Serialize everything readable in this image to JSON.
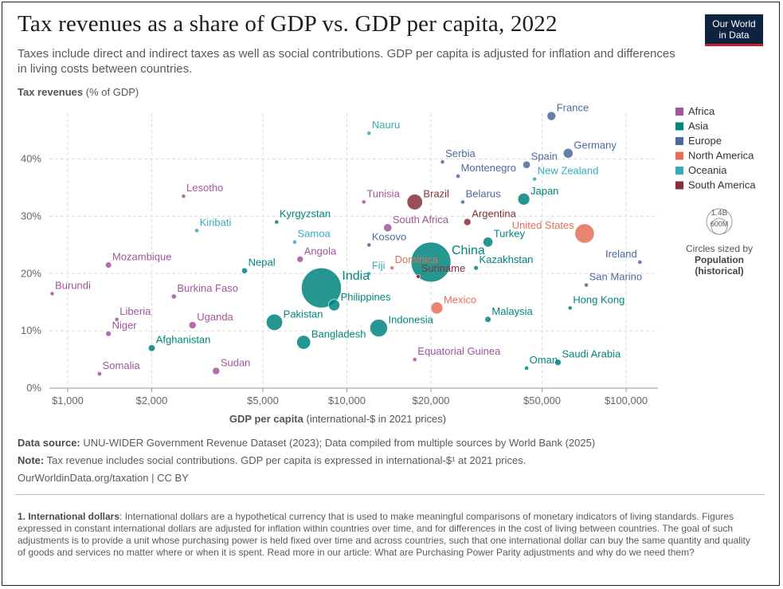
{
  "title": "Tax revenues as a share of GDP vs. GDP per capita, 2022",
  "subtitle": "Taxes include direct and indirect taxes as well as social contributions. GDP per capita is adjusted for inflation and differences in living costs between countries.",
  "logo": {
    "line1": "Our World",
    "line2": "in Data"
  },
  "footer": {
    "source_label": "Data source:",
    "source_text": "UNU-WIDER Government Revenue Dataset (2023); Data compiled from multiple sources by World Bank (2025)",
    "note_label": "Note:",
    "note_text": "Tax revenue includes social contributions. GDP per capita is expressed in international-$¹ at 2021 prices.",
    "url_text": "OurWorldinData.org/taxation | CC BY"
  },
  "footnote": {
    "label": "1. International dollars",
    "text": ": International dollars are a hypothetical currency that is used to make meaningful comparisons of monetary indicators of living standards. Figures expressed in constant international dollars are adjusted for inflation within countries over time, and for differences in the cost of living between countries. The goal of such adjustments is to provide a unit whose purchasing power is held fixed over time and across countries, such that one international dollar can buy the same quantity and quality of goods and services no matter where or when it is spent. Read more in our article: What are Purchasing Power Parity adjustments and why do we need them?"
  },
  "size_legend": {
    "big": "1.4B",
    "small": "600M",
    "caption": "Circles sized by",
    "caption_bold1": "Population",
    "caption_bold2": "(historical)"
  },
  "colors": {
    "Africa": "#a2559c",
    "Asia": "#00847e",
    "Europe": "#4c6a9c",
    "North America": "#e56e5a",
    "Oceania": "#38aaba",
    "South America": "#883039"
  },
  "chart_data": {
    "type": "scatter",
    "xscale": "log",
    "xlim": [
      860,
      130000
    ],
    "ylim": [
      0,
      48
    ],
    "grid": true,
    "legend_position": "right",
    "y_label_main": "Tax revenues",
    "y_label_unit": "(% of GDP)",
    "x_label_main": "GDP per capita",
    "x_label_unit": "(international-$ in 2021 prices)",
    "x_ticks": [
      {
        "v": 1000,
        "label": "$1,000"
      },
      {
        "v": 2000,
        "label": "$2,000"
      },
      {
        "v": 5000,
        "label": "$5,000"
      },
      {
        "v": 10000,
        "label": "$10,000"
      },
      {
        "v": 20000,
        "label": "$20,000"
      },
      {
        "v": 50000,
        "label": "$50,000"
      },
      {
        "v": 100000,
        "label": "$100,000"
      }
    ],
    "y_ticks": [
      {
        "v": 0,
        "label": "0%"
      },
      {
        "v": 10,
        "label": "10%"
      },
      {
        "v": 20,
        "label": "20%"
      },
      {
        "v": 30,
        "label": "30%"
      },
      {
        "v": 40,
        "label": "40%"
      }
    ],
    "legend": [
      "Africa",
      "Asia",
      "Europe",
      "North America",
      "Oceania",
      "South America"
    ],
    "points": [
      {
        "label": "France",
        "region": "Europe",
        "x": 54000,
        "y": 47.5,
        "pop": 68
      },
      {
        "label": "Germany",
        "region": "Europe",
        "x": 62000,
        "y": 41,
        "pop": 84
      },
      {
        "label": "Spain",
        "region": "Europe",
        "x": 44000,
        "y": 39,
        "pop": 48
      },
      {
        "label": "Serbia",
        "region": "Europe",
        "x": 22000,
        "y": 39.5,
        "pop": 7
      },
      {
        "label": "Montenegro",
        "region": "Europe",
        "x": 25000,
        "y": 37,
        "pop": 1
      },
      {
        "label": "New Zealand",
        "region": "Oceania",
        "x": 47000,
        "y": 36.5,
        "pop": 5
      },
      {
        "label": "Nauru",
        "region": "Oceania",
        "x": 12000,
        "y": 44.5,
        "pop": 0.2
      },
      {
        "label": "Lesotho",
        "region": "Africa",
        "x": 2600,
        "y": 33.5,
        "pop": 2.3
      },
      {
        "label": "Tunisia",
        "region": "Africa",
        "x": 11500,
        "y": 32.5,
        "pop": 12
      },
      {
        "label": "Brazil",
        "region": "South America",
        "x": 17500,
        "y": 32.5,
        "pop": 215
      },
      {
        "label": "Belarus",
        "region": "Europe",
        "x": 26000,
        "y": 32.5,
        "pop": 9
      },
      {
        "label": "Japan",
        "region": "Asia",
        "x": 43000,
        "y": 33,
        "pop": 125
      },
      {
        "label": "Kyrgyzstan",
        "region": "Asia",
        "x": 5600,
        "y": 29,
        "pop": 7
      },
      {
        "label": "Kiribati",
        "region": "Oceania",
        "x": 2900,
        "y": 27.5,
        "pop": 0.1
      },
      {
        "label": "Argentina",
        "region": "South America",
        "x": 27000,
        "y": 29,
        "pop": 46
      },
      {
        "label": "South Africa",
        "region": "Africa",
        "x": 14000,
        "y": 28,
        "pop": 60
      },
      {
        "label": "United States",
        "region": "North America",
        "x": 71000,
        "y": 27,
        "pop": 335
      },
      {
        "label": "Samoa",
        "region": "Oceania",
        "x": 6500,
        "y": 25.5,
        "pop": 0.2
      },
      {
        "label": "Kosovo",
        "region": "Europe",
        "x": 12000,
        "y": 25,
        "pop": 2
      },
      {
        "label": "China",
        "region": "Asia",
        "x": 20000,
        "y": 22,
        "pop": 1410
      },
      {
        "label": "Turkey",
        "region": "Asia",
        "x": 32000,
        "y": 25.5,
        "pop": 85
      },
      {
        "label": "Mozambique",
        "region": "Africa",
        "x": 1400,
        "y": 21.5,
        "pop": 33
      },
      {
        "label": "Angola",
        "region": "Africa",
        "x": 6800,
        "y": 22.5,
        "pop": 36
      },
      {
        "label": "Nepal",
        "region": "Asia",
        "x": 4300,
        "y": 20.5,
        "pop": 30
      },
      {
        "label": "Dominica",
        "region": "North America",
        "x": 14500,
        "y": 21,
        "pop": 0.1
      },
      {
        "label": "Kazakhstan",
        "region": "Asia",
        "x": 29000,
        "y": 21,
        "pop": 19
      },
      {
        "label": "Ireland",
        "region": "Europe",
        "x": 112000,
        "y": 22,
        "pop": 5
      },
      {
        "label": "India",
        "region": "Asia",
        "x": 8100,
        "y": 17.5,
        "pop": 1420
      },
      {
        "label": "Fiji",
        "region": "Oceania",
        "x": 12000,
        "y": 20,
        "pop": 0.9
      },
      {
        "label": "Suriname",
        "region": "South America",
        "x": 18000,
        "y": 19.5,
        "pop": 0.6
      },
      {
        "label": "San Marino",
        "region": "Europe",
        "x": 72000,
        "y": 18,
        "pop": 0.03
      },
      {
        "label": "Burundi",
        "region": "Africa",
        "x": 880,
        "y": 16.5,
        "pop": 13
      },
      {
        "label": "Burkina Faso",
        "region": "Africa",
        "x": 2400,
        "y": 16,
        "pop": 22
      },
      {
        "label": "Philippines",
        "region": "Asia",
        "x": 9000,
        "y": 14.5,
        "pop": 115
      },
      {
        "label": "Mexico",
        "region": "North America",
        "x": 21000,
        "y": 14,
        "pop": 127
      },
      {
        "label": "Hong Kong",
        "region": "Asia",
        "x": 63000,
        "y": 14,
        "pop": 7.3
      },
      {
        "label": "Liberia",
        "region": "Africa",
        "x": 1500,
        "y": 12,
        "pop": 5.3
      },
      {
        "label": "Pakistan",
        "region": "Asia",
        "x": 5500,
        "y": 11.5,
        "pop": 235
      },
      {
        "label": "Indonesia",
        "region": "Asia",
        "x": 13000,
        "y": 10.5,
        "pop": 275
      },
      {
        "label": "Malaysia",
        "region": "Asia",
        "x": 32000,
        "y": 12,
        "pop": 33
      },
      {
        "label": "Uganda",
        "region": "Africa",
        "x": 2800,
        "y": 11,
        "pop": 47
      },
      {
        "label": "Niger",
        "region": "Africa",
        "x": 1400,
        "y": 9.5,
        "pop": 26
      },
      {
        "label": "Bangladesh",
        "region": "Asia",
        "x": 7000,
        "y": 8,
        "pop": 170
      },
      {
        "label": "Afghanistan",
        "region": "Asia",
        "x": 2000,
        "y": 7,
        "pop": 41
      },
      {
        "label": "Equatorial Guinea",
        "region": "Africa",
        "x": 17500,
        "y": 5,
        "pop": 1.7
      },
      {
        "label": "Saudi Arabia",
        "region": "Asia",
        "x": 57000,
        "y": 4.5,
        "pop": 36
      },
      {
        "label": "Oman",
        "region": "Asia",
        "x": 44000,
        "y": 3.5,
        "pop": 4.6
      },
      {
        "label": "Sudan",
        "region": "Africa",
        "x": 3400,
        "y": 3,
        "pop": 47
      },
      {
        "label": "Somalia",
        "region": "Africa",
        "x": 1300,
        "y": 2.5,
        "pop": 17
      }
    ]
  }
}
